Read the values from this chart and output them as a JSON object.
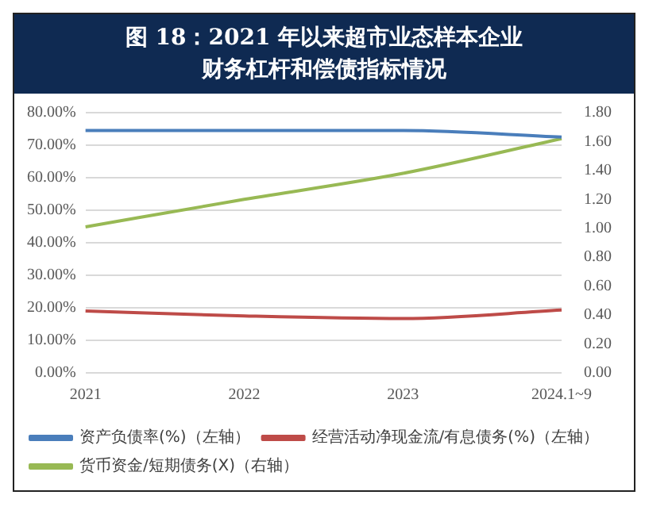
{
  "chart_data": {
    "type": "line",
    "title": "图 18：2021 年以来超市业态样本企业财务杠杆和偿债指标情况",
    "categories": [
      "2021",
      "2022",
      "2023",
      "2024.1~9"
    ],
    "series": [
      {
        "name": "资产负债率(%)（左轴）",
        "color": "#4a7ebb",
        "values": [
          74.5,
          74.5,
          74.5,
          72.5
        ]
      },
      {
        "name": "经营活动净现金流/有息债务(%)（左轴）",
        "color": "#be4b48",
        "values": [
          19,
          17.5,
          16.7,
          19.3
        ]
      },
      {
        "name": "货币资金/短期债务(X)（右轴）",
        "color": "#98b954",
        "axis": "y2",
        "values": [
          1.01,
          1.2,
          1.38,
          1.62
        ]
      }
    ],
    "ylim": [
      0,
      80
    ],
    "yticks": [
      {
        "value": 0,
        "label": "0.00%"
      },
      {
        "value": 10,
        "label": "10.00%"
      },
      {
        "value": 20,
        "label": "20.00%"
      },
      {
        "value": 30,
        "label": "30.00%"
      },
      {
        "value": 40,
        "label": "40.00%"
      },
      {
        "value": 50,
        "label": "50.00%"
      },
      {
        "value": 60,
        "label": "60.00%"
      },
      {
        "value": 70,
        "label": "70.00%"
      },
      {
        "value": 80,
        "label": "80.00%"
      }
    ],
    "y2lim": [
      0,
      1.8
    ],
    "y2ticks": [
      {
        "value": 0,
        "label": "0.00"
      },
      {
        "value": 0.2,
        "label": "0.20"
      },
      {
        "value": 0.4,
        "label": "0.40"
      },
      {
        "value": 0.6,
        "label": "0.60"
      },
      {
        "value": 0.8,
        "label": "0.80"
      },
      {
        "value": 1,
        "label": "1.00"
      },
      {
        "value": 1.2,
        "label": "1.20"
      },
      {
        "value": 1.4,
        "label": "1.40"
      },
      {
        "value": 1.6,
        "label": "1.60"
      },
      {
        "value": 1.8,
        "label": "1.80"
      }
    ],
    "grid": "y",
    "legend": "bottom",
    "marker": "none",
    "line_style": "solid"
  }
}
